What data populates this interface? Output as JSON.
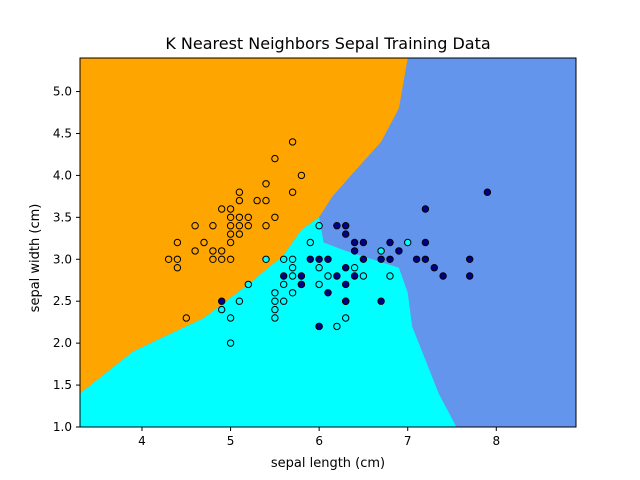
{
  "chart_data": {
    "type": "scatter",
    "title": "K Nearest Neighbors Sepal Training Data",
    "xlabel": "sepal length (cm)",
    "ylabel": "sepal width (cm)",
    "xlim": [
      3.3,
      8.9
    ],
    "ylim": [
      1.0,
      5.4
    ],
    "xticks": [
      4,
      5,
      6,
      7,
      8
    ],
    "yticks": [
      1.0,
      1.5,
      2.0,
      2.5,
      3.0,
      3.5,
      4.0,
      4.5,
      5.0
    ],
    "xtick_labels": [
      "4",
      "5",
      "6",
      "7",
      "8"
    ],
    "ytick_labels": [
      "1.0",
      "1.5",
      "2.0",
      "2.5",
      "3.0",
      "3.5",
      "4.0",
      "4.5",
      "5.0"
    ],
    "grid": false,
    "background_regions": {
      "colors": {
        "setosa_region": "#ffa500",
        "versicolor_region": "#00ffff",
        "virginica_region": "#6495ed"
      },
      "orange_cyan_boundary": [
        [
          3.3,
          1.4
        ],
        [
          3.9,
          1.9
        ],
        [
          4.2,
          2.05
        ],
        [
          4.7,
          2.3
        ],
        [
          5.2,
          2.7
        ],
        [
          5.6,
          3.05
        ],
        [
          5.8,
          3.35
        ],
        [
          6.0,
          3.5
        ]
      ],
      "orange_blue_boundary": [
        [
          6.0,
          3.5
        ],
        [
          6.15,
          3.75
        ],
        [
          6.4,
          4.05
        ],
        [
          6.7,
          4.4
        ],
        [
          6.9,
          4.8
        ],
        [
          7.0,
          5.4
        ]
      ],
      "cyan_blue_boundary": [
        [
          6.0,
          3.5
        ],
        [
          6.05,
          3.2
        ],
        [
          6.3,
          3.1
        ],
        [
          6.6,
          3.0
        ],
        [
          6.9,
          2.9
        ],
        [
          7.0,
          2.6
        ],
        [
          7.05,
          2.2
        ],
        [
          7.2,
          1.8
        ],
        [
          7.35,
          1.4
        ],
        [
          7.55,
          1.0
        ]
      ]
    },
    "point_colors": {
      "setosa": "#ffa500",
      "versicolor": "#00ffff",
      "virginica": "#00008b"
    },
    "series": [
      {
        "points": [
          [
            4.3,
            3.0
          ],
          [
            4.4,
            2.9
          ],
          [
            4.4,
            3.0
          ],
          [
            4.4,
            3.2
          ],
          [
            4.5,
            2.3
          ],
          [
            4.6,
            3.1
          ],
          [
            4.6,
            3.4
          ],
          [
            4.7,
            3.2
          ],
          [
            4.8,
            3.0
          ],
          [
            4.8,
            3.1
          ],
          [
            4.8,
            3.4
          ],
          [
            4.9,
            3.0
          ],
          [
            4.9,
            3.1
          ],
          [
            4.9,
            3.6
          ],
          [
            5.0,
            3.0
          ],
          [
            5.0,
            3.2
          ],
          [
            5.0,
            3.3
          ],
          [
            5.0,
            3.4
          ],
          [
            5.0,
            3.5
          ],
          [
            5.0,
            3.6
          ],
          [
            5.1,
            3.3
          ],
          [
            5.1,
            3.4
          ],
          [
            5.1,
            3.5
          ],
          [
            5.1,
            3.7
          ],
          [
            5.1,
            3.8
          ],
          [
            5.2,
            3.4
          ],
          [
            5.2,
            3.5
          ],
          [
            5.3,
            3.7
          ],
          [
            5.4,
            3.4
          ],
          [
            5.4,
            3.7
          ],
          [
            5.4,
            3.9
          ],
          [
            5.5,
            3.5
          ],
          [
            5.5,
            4.2
          ],
          [
            5.7,
            3.8
          ],
          [
            5.7,
            4.4
          ],
          [
            5.8,
            4.0
          ]
        ]
      },
      {
        "points": [
          [
            4.9,
            2.4
          ],
          [
            5.0,
            2.0
          ],
          [
            5.0,
            2.3
          ],
          [
            5.1,
            2.5
          ],
          [
            5.2,
            2.7
          ],
          [
            5.4,
            3.0
          ],
          [
            5.5,
            2.3
          ],
          [
            5.5,
            2.4
          ],
          [
            5.5,
            2.5
          ],
          [
            5.5,
            2.6
          ],
          [
            5.6,
            2.5
          ],
          [
            5.6,
            2.7
          ],
          [
            5.6,
            3.0
          ],
          [
            5.7,
            2.6
          ],
          [
            5.7,
            2.8
          ],
          [
            5.7,
            2.9
          ],
          [
            5.7,
            3.0
          ],
          [
            5.8,
            2.7
          ],
          [
            5.9,
            3.2
          ],
          [
            6.0,
            2.2
          ],
          [
            6.0,
            2.7
          ],
          [
            6.0,
            2.9
          ],
          [
            6.0,
            3.4
          ],
          [
            6.1,
            2.8
          ],
          [
            6.2,
            2.2
          ],
          [
            6.3,
            2.3
          ],
          [
            6.3,
            2.5
          ],
          [
            6.4,
            2.9
          ],
          [
            6.5,
            2.8
          ],
          [
            6.7,
            3.1
          ],
          [
            6.8,
            2.8
          ],
          [
            7.0,
            3.2
          ]
        ]
      },
      {
        "points": [
          [
            4.9,
            2.5
          ],
          [
            5.6,
            2.8
          ],
          [
            5.8,
            2.7
          ],
          [
            5.8,
            2.8
          ],
          [
            5.9,
            3.0
          ],
          [
            6.0,
            3.0
          ],
          [
            6.0,
            2.2
          ],
          [
            6.1,
            2.6
          ],
          [
            6.1,
            3.0
          ],
          [
            6.2,
            2.8
          ],
          [
            6.2,
            3.4
          ],
          [
            6.3,
            2.5
          ],
          [
            6.3,
            2.7
          ],
          [
            6.3,
            2.9
          ],
          [
            6.3,
            3.3
          ],
          [
            6.3,
            3.4
          ],
          [
            6.4,
            2.8
          ],
          [
            6.4,
            3.1
          ],
          [
            6.4,
            3.2
          ],
          [
            6.5,
            3.0
          ],
          [
            6.5,
            3.2
          ],
          [
            6.7,
            2.5
          ],
          [
            6.7,
            3.0
          ],
          [
            6.8,
            3.0
          ],
          [
            6.8,
            3.2
          ],
          [
            6.9,
            3.1
          ],
          [
            7.1,
            3.0
          ],
          [
            7.2,
            3.0
          ],
          [
            7.2,
            3.2
          ],
          [
            7.2,
            3.6
          ],
          [
            7.3,
            2.9
          ],
          [
            7.4,
            2.8
          ],
          [
            7.7,
            2.8
          ],
          [
            7.7,
            3.0
          ],
          [
            7.9,
            3.8
          ]
        ]
      }
    ]
  }
}
